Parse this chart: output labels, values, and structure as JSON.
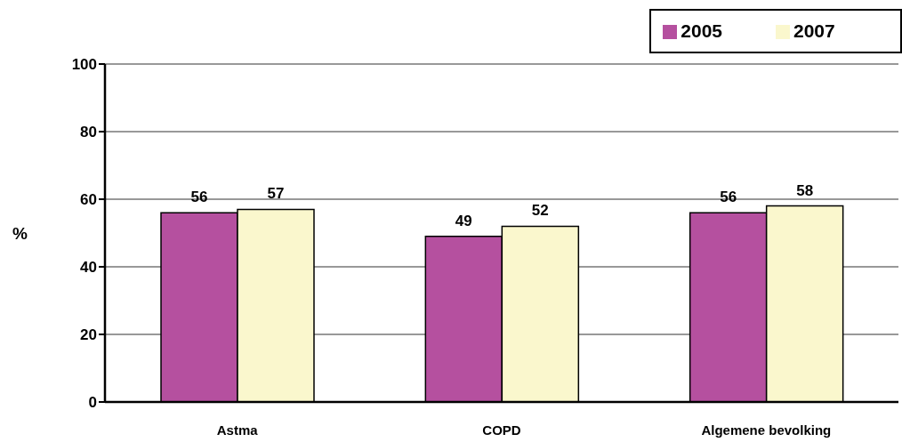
{
  "chart_data": {
    "type": "bar",
    "ylabel": "%",
    "categories": [
      "Astma",
      "COPD",
      "Algemene bevolking"
    ],
    "series": [
      {
        "name": "2005",
        "color": "#b5509f",
        "values": [
          56,
          49,
          56
        ]
      },
      {
        "name": "2007",
        "color": "#faf7cd",
        "values": [
          57,
          52,
          58
        ]
      }
    ],
    "ylim": [
      0,
      100
    ],
    "yticks": [
      0,
      20,
      40,
      60,
      80,
      100
    ],
    "grid": "y",
    "legend": "top right",
    "data_labels": true
  }
}
